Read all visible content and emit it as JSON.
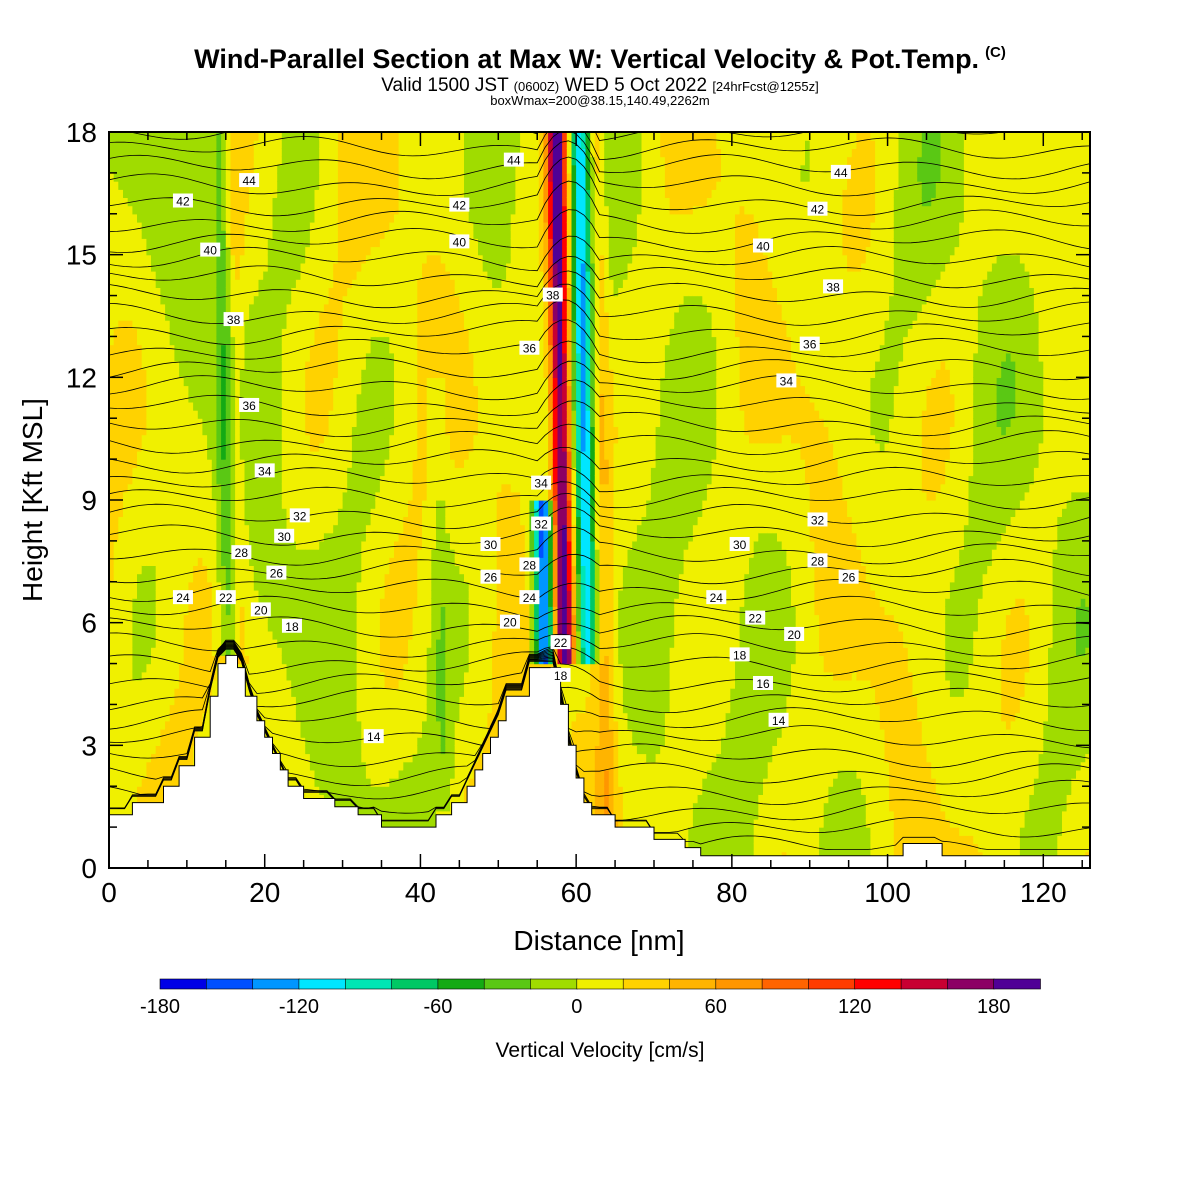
{
  "title": {
    "main": "Wind-Parallel Section at Max W: Vertical Velocity & Pot.Temp.",
    "copyright": "(C)",
    "valid_prefix": "Valid 1500 JST",
    "valid_utc": "(0600Z)",
    "valid_date": "WED 5 Oct 2022",
    "forecast": "[24hrFcst@1255z]",
    "box": "boxWmax=200@38.15,140.49,2262m"
  },
  "chart_data": {
    "type": "heatmap",
    "xlabel": "Distance [nm]",
    "ylabel": "Height [Kft MSL]",
    "xlim": [
      0,
      126
    ],
    "ylim": [
      0,
      18
    ],
    "x_ticks": [
      "0",
      "20",
      "40",
      "60",
      "80",
      "100",
      "120"
    ],
    "y_ticks": [
      "0",
      "3",
      "6",
      "9",
      "12",
      "15",
      "18"
    ],
    "colorbar": {
      "label": "Vertical Velocity [cm/s]",
      "range": [
        -180,
        200
      ],
      "step": 20,
      "tick_labels": [
        "-180",
        "-120",
        "-60",
        "0",
        "60",
        "120",
        "180"
      ],
      "colors": [
        "#0000e6",
        "#0050ff",
        "#0096ff",
        "#00e6ff",
        "#00e6b4",
        "#00c864",
        "#14aa14",
        "#5ac814",
        "#a0dc00",
        "#f0f000",
        "#ffd200",
        "#ffb400",
        "#ff9600",
        "#ff6400",
        "#ff3c00",
        "#ff0000",
        "#c80032",
        "#8c0064",
        "#500096"
      ]
    },
    "velocity_features": [
      {
        "x": 15.5,
        "z_bottom": 5.3,
        "z_top": 18,
        "w": -50
      },
      {
        "x": 16.5,
        "z_bottom": 5.0,
        "z_top": 18,
        "w": 30
      },
      {
        "x": 43,
        "z_bottom": 1.5,
        "z_top": 12,
        "w": -20
      },
      {
        "x": 56,
        "z_bottom": 5.0,
        "z_top": 9,
        "w": -170
      },
      {
        "x": 58.5,
        "z_bottom": 5.0,
        "z_top": 18,
        "w": 190
      },
      {
        "x": 61.5,
        "z_bottom": 5.0,
        "z_top": 18,
        "w": -120
      },
      {
        "x": 64,
        "z_bottom": 0.5,
        "z_top": 18,
        "w": 40
      }
    ],
    "terrain": [
      [
        0,
        1.3
      ],
      [
        3,
        1.3
      ],
      [
        3,
        1.6
      ],
      [
        7,
        1.6
      ],
      [
        7,
        2.0
      ],
      [
        9,
        2.0
      ],
      [
        9,
        2.5
      ],
      [
        11,
        2.5
      ],
      [
        11,
        3.2
      ],
      [
        13,
        3.2
      ],
      [
        13,
        4.2
      ],
      [
        14,
        4.2
      ],
      [
        14,
        5.0
      ],
      [
        15,
        5.0
      ],
      [
        15,
        5.2
      ],
      [
        16.5,
        5.2
      ],
      [
        16.5,
        4.9
      ],
      [
        17.5,
        4.9
      ],
      [
        17.5,
        4.2
      ],
      [
        19,
        4.2
      ],
      [
        19,
        3.6
      ],
      [
        20,
        3.6
      ],
      [
        20,
        3.2
      ],
      [
        21,
        3.2
      ],
      [
        21,
        2.8
      ],
      [
        22,
        2.8
      ],
      [
        22,
        2.4
      ],
      [
        23,
        2.4
      ],
      [
        23,
        2.0
      ],
      [
        25,
        2.0
      ],
      [
        25,
        1.7
      ],
      [
        29,
        1.7
      ],
      [
        29,
        1.5
      ],
      [
        32,
        1.5
      ],
      [
        32,
        1.3
      ],
      [
        35,
        1.3
      ],
      [
        35,
        1.0
      ],
      [
        42,
        1.0
      ],
      [
        42,
        1.3
      ],
      [
        44,
        1.3
      ],
      [
        44,
        1.6
      ],
      [
        46,
        1.6
      ],
      [
        46,
        2.0
      ],
      [
        47,
        2.0
      ],
      [
        47,
        2.4
      ],
      [
        48,
        2.4
      ],
      [
        48,
        2.8
      ],
      [
        49,
        2.8
      ],
      [
        49,
        3.2
      ],
      [
        50,
        3.2
      ],
      [
        50,
        3.6
      ],
      [
        51,
        3.6
      ],
      [
        51,
        4.2
      ],
      [
        54,
        4.2
      ],
      [
        54,
        4.9
      ],
      [
        58,
        4.9
      ],
      [
        58,
        4.0
      ],
      [
        59,
        4.0
      ],
      [
        59,
        3.0
      ],
      [
        60,
        3.0
      ],
      [
        60,
        2.2
      ],
      [
        61,
        2.2
      ],
      [
        61,
        1.6
      ],
      [
        62,
        1.6
      ],
      [
        62,
        1.3
      ],
      [
        65,
        1.3
      ],
      [
        65,
        1.0
      ],
      [
        70,
        1.0
      ],
      [
        70,
        0.7
      ],
      [
        74,
        0.7
      ],
      [
        74,
        0.5
      ],
      [
        76,
        0.5
      ],
      [
        76,
        0.3
      ],
      [
        102,
        0.3
      ],
      [
        102,
        0.6
      ],
      [
        107,
        0.6
      ],
      [
        107,
        0.3
      ],
      [
        126,
        0.3
      ]
    ],
    "theta_labels": [
      {
        "text": "44",
        "x": 18,
        "z": 16.8
      },
      {
        "text": "42",
        "x": 9.5,
        "z": 16.3
      },
      {
        "text": "40",
        "x": 13,
        "z": 15.1
      },
      {
        "text": "38",
        "x": 16,
        "z": 13.4
      },
      {
        "text": "36",
        "x": 18,
        "z": 11.3
      },
      {
        "text": "34",
        "x": 20,
        "z": 9.7
      },
      {
        "text": "32",
        "x": 24.5,
        "z": 8.6
      },
      {
        "text": "30",
        "x": 22.5,
        "z": 8.1
      },
      {
        "text": "28",
        "x": 17,
        "z": 7.7
      },
      {
        "text": "26",
        "x": 21.5,
        "z": 7.2
      },
      {
        "text": "24",
        "x": 9.5,
        "z": 6.6
      },
      {
        "text": "22",
        "x": 15,
        "z": 6.6
      },
      {
        "text": "20",
        "x": 19.5,
        "z": 6.3
      },
      {
        "text": "18",
        "x": 23.5,
        "z": 5.9
      },
      {
        "text": "14",
        "x": 34,
        "z": 3.2
      },
      {
        "text": "44",
        "x": 52,
        "z": 17.3
      },
      {
        "text": "42",
        "x": 45,
        "z": 16.2
      },
      {
        "text": "40",
        "x": 45,
        "z": 15.3
      },
      {
        "text": "38",
        "x": 57,
        "z": 14.0
      },
      {
        "text": "36",
        "x": 54,
        "z": 12.7
      },
      {
        "text": "34",
        "x": 55.5,
        "z": 9.4
      },
      {
        "text": "32",
        "x": 55.5,
        "z": 8.4
      },
      {
        "text": "30",
        "x": 49,
        "z": 7.9
      },
      {
        "text": "28",
        "x": 54,
        "z": 7.4
      },
      {
        "text": "26",
        "x": 49,
        "z": 7.1
      },
      {
        "text": "24",
        "x": 54,
        "z": 6.6
      },
      {
        "text": "20",
        "x": 51.5,
        "z": 6.0
      },
      {
        "text": "22",
        "x": 58,
        "z": 5.5
      },
      {
        "text": "18",
        "x": 58,
        "z": 4.7
      },
      {
        "text": "44",
        "x": 94,
        "z": 17.0
      },
      {
        "text": "42",
        "x": 91,
        "z": 16.1
      },
      {
        "text": "40",
        "x": 84,
        "z": 15.2
      },
      {
        "text": "38",
        "x": 93,
        "z": 14.2
      },
      {
        "text": "36",
        "x": 90,
        "z": 12.8
      },
      {
        "text": "34",
        "x": 87,
        "z": 11.9
      },
      {
        "text": "32",
        "x": 91,
        "z": 8.5
      },
      {
        "text": "30",
        "x": 81,
        "z": 7.9
      },
      {
        "text": "28",
        "x": 91,
        "z": 7.5
      },
      {
        "text": "26",
        "x": 95,
        "z": 7.1
      },
      {
        "text": "24",
        "x": 78,
        "z": 6.6
      },
      {
        "text": "22",
        "x": 83,
        "z": 6.1
      },
      {
        "text": "20",
        "x": 88,
        "z": 5.7
      },
      {
        "text": "18",
        "x": 81,
        "z": 5.2
      },
      {
        "text": "16",
        "x": 84,
        "z": 4.5
      },
      {
        "text": "14",
        "x": 86,
        "z": 3.6
      }
    ]
  }
}
